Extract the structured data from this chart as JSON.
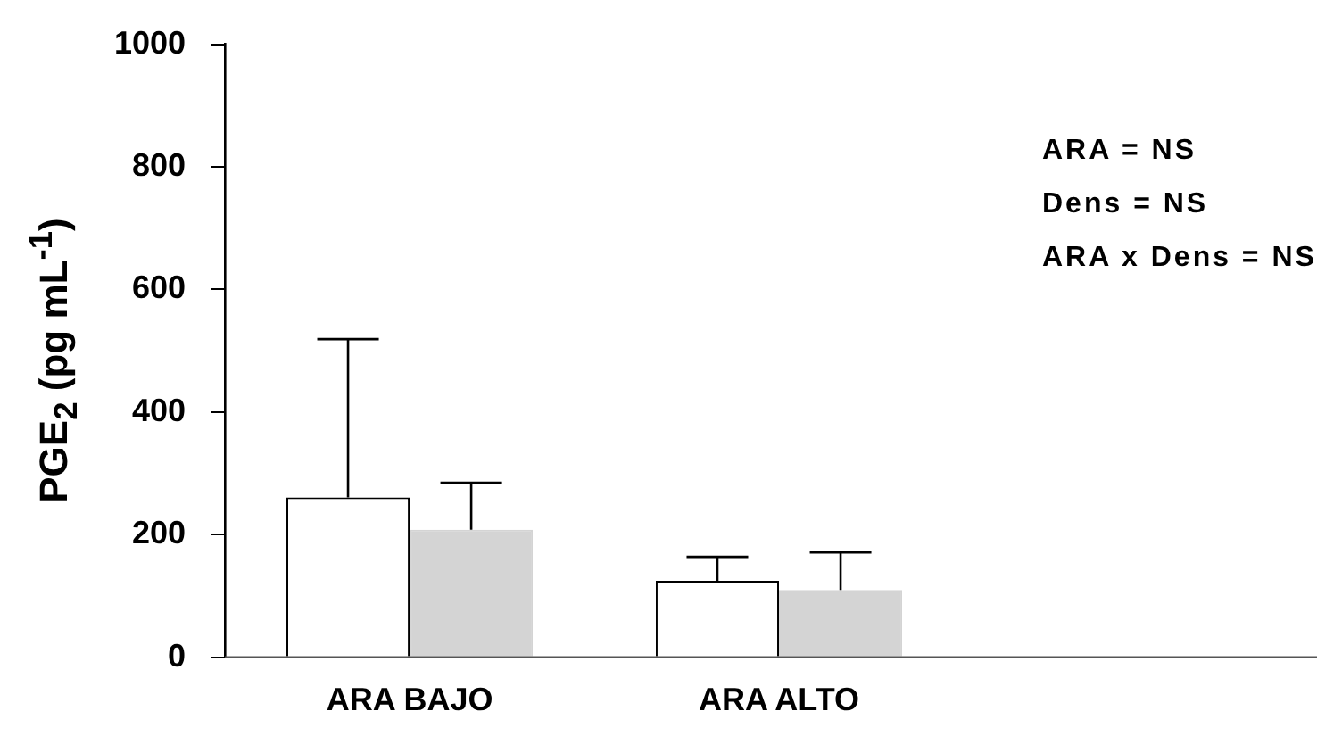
{
  "chart_data": {
    "type": "bar",
    "ylabel": "PGE$_{2}$ (pg mL$^{-1}$)",
    "categories": [
      "ARA BAJO",
      "ARA ALTO"
    ],
    "series": [
      {
        "color": "#ffffff",
        "values": [
          261,
          125
        ],
        "errors": [
          [
            261,
            519
          ],
          [
            125,
            164
          ]
        ]
      },
      {
        "color": "#d4d4d4",
        "values": [
          208,
          110
        ],
        "errors": [
          [
            208,
            285
          ],
          [
            110,
            171
          ]
        ]
      }
    ],
    "ylim": [
      0,
      1000
    ],
    "yticks": [
      0,
      200,
      400,
      600,
      800,
      1000
    ],
    "grid": false,
    "legend": false,
    "annotations": [
      "ARA = NS",
      "Dens = NS",
      "ARA x Dens = NS"
    ]
  }
}
